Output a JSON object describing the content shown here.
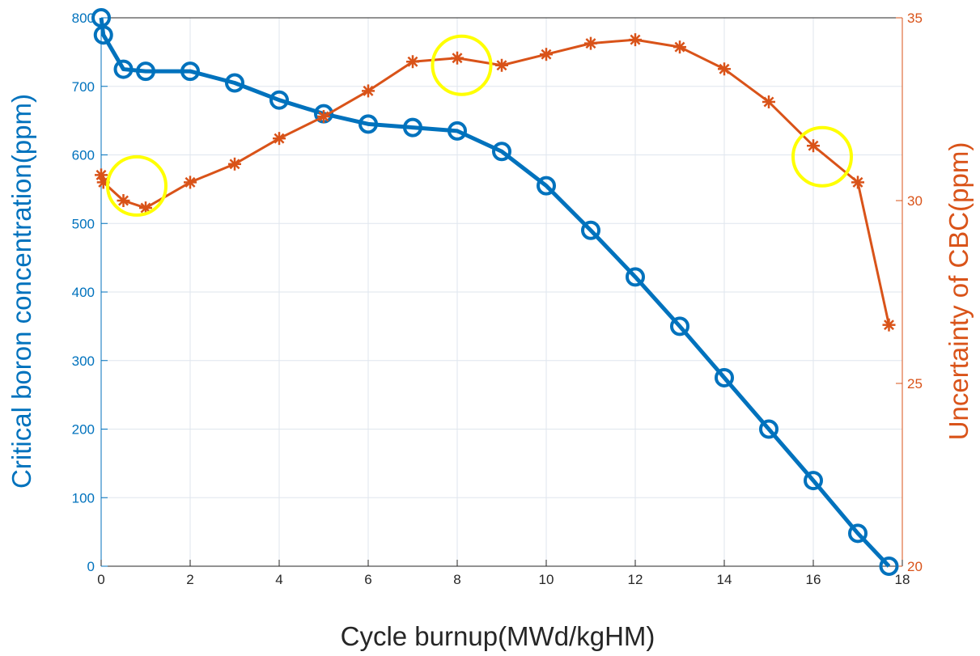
{
  "chart_data": {
    "type": "line",
    "xlabel": "Cycle burnup(MWd/kgHM)",
    "xlim": [
      0,
      18
    ],
    "x_ticks": [
      "0",
      "2",
      "4",
      "6",
      "8",
      "10",
      "12",
      "14",
      "16",
      "18"
    ],
    "grid": true,
    "y_left": {
      "label": "Critical boron concentration(ppm)",
      "lim": [
        0,
        800
      ],
      "ticks": [
        "0",
        "100",
        "200",
        "300",
        "400",
        "500",
        "600",
        "700",
        "800"
      ],
      "color": "#0072BD"
    },
    "y_right": {
      "label": "Uncertainty of CBC(ppm)",
      "lim": [
        20,
        35
      ],
      "ticks": [
        "20",
        "25",
        "30",
        "35"
      ],
      "color": "#D95319"
    },
    "series": [
      {
        "axis": "left",
        "marker": "circle",
        "color": "#0072BD",
        "x": [
          0,
          0.05,
          0.5,
          1,
          2,
          3,
          4,
          5,
          6,
          7,
          8,
          9,
          10,
          11,
          12,
          13,
          14,
          15,
          16,
          17,
          17.7
        ],
        "y": [
          800,
          775,
          725,
          722,
          722,
          705,
          680,
          660,
          645,
          640,
          635,
          605,
          555,
          490,
          422,
          350,
          275,
          200,
          125,
          48,
          0
        ]
      },
      {
        "axis": "right",
        "marker": "asterisk",
        "color": "#D95319",
        "x": [
          0,
          0.05,
          0.5,
          1,
          2,
          3,
          4,
          5,
          6,
          7,
          8,
          9,
          10,
          11,
          12,
          13,
          14,
          15,
          16,
          17,
          17.7
        ],
        "y": [
          30.7,
          30.5,
          30.0,
          29.8,
          30.5,
          31.0,
          31.7,
          32.3,
          33.0,
          33.8,
          33.9,
          33.7,
          34.0,
          34.3,
          34.4,
          34.2,
          33.6,
          32.7,
          31.5,
          30.5,
          26.6
        ]
      }
    ],
    "annotations": [
      {
        "shape": "circle",
        "color": "#FFFF00",
        "x": 0.8,
        "axis": "right",
        "y": 30.4
      },
      {
        "shape": "circle",
        "color": "#FFFF00",
        "x": 8.1,
        "axis": "right",
        "y": 33.7
      },
      {
        "shape": "circle",
        "color": "#FFFF00",
        "x": 16.2,
        "axis": "right",
        "y": 31.2
      }
    ]
  }
}
